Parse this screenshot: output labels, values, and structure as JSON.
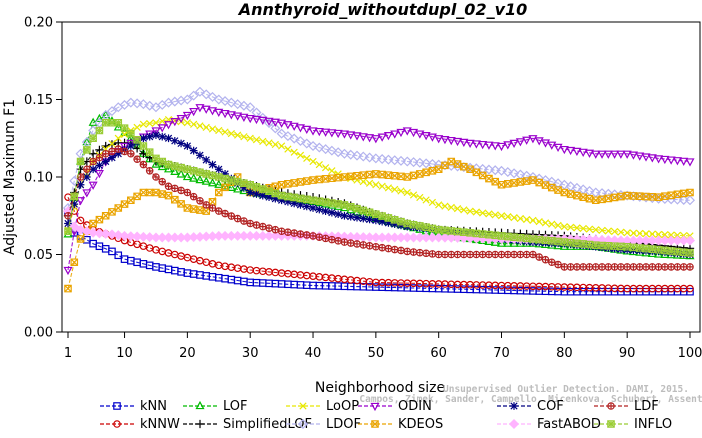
{
  "chart_data": {
    "type": "line",
    "title": "Annthyroid_withoutdupl_02_v10",
    "xlabel": "Neighborhood size",
    "ylabel": "Adjusted Maximum F1",
    "xlim": [
      1,
      100
    ],
    "ylim": [
      0,
      0.2
    ],
    "xticks": [
      "1",
      "10",
      "20",
      "30",
      "40",
      "50",
      "60",
      "70",
      "80",
      "90",
      "100"
    ],
    "yticks": [
      "0.00",
      "0.05",
      "0.10",
      "0.15",
      "0.20"
    ],
    "grid": false,
    "legend_position": "bottom",
    "watermark": [
      "Campos, Zimek, Sander, Campello, Micenkova, Schubert, Assent, Houle",
      "Unsupervised Outlier Detection. DAMI, 2015."
    ],
    "series": [
      {
        "name": "kNN",
        "color": "#0000cc",
        "marker": "square",
        "x": [
          1,
          2,
          3,
          5,
          8,
          10,
          15,
          20,
          25,
          30,
          40,
          50,
          60,
          70,
          80,
          90,
          100
        ],
        "y": [
          0.077,
          0.064,
          0.062,
          0.057,
          0.052,
          0.047,
          0.042,
          0.038,
          0.035,
          0.032,
          0.03,
          0.029,
          0.028,
          0.027,
          0.026,
          0.026,
          0.026
        ]
      },
      {
        "name": "kNNW",
        "color": "#cc0000",
        "marker": "circle",
        "x": [
          1,
          2,
          3,
          5,
          8,
          10,
          15,
          20,
          25,
          30,
          40,
          50,
          60,
          70,
          80,
          90,
          100
        ],
        "y": [
          0.087,
          0.078,
          0.072,
          0.066,
          0.062,
          0.059,
          0.053,
          0.048,
          0.043,
          0.04,
          0.036,
          0.032,
          0.031,
          0.03,
          0.029,
          0.028,
          0.028
        ]
      },
      {
        "name": "LOF",
        "color": "#00bb00",
        "marker": "triangle-up",
        "x": [
          1,
          3,
          5,
          7,
          9,
          11,
          13,
          15,
          17,
          20,
          25,
          30,
          35,
          40,
          45,
          50,
          55,
          60,
          65,
          70,
          75,
          80,
          85,
          90,
          95,
          100
        ],
        "y": [
          0.063,
          0.11,
          0.135,
          0.14,
          0.132,
          0.125,
          0.115,
          0.108,
          0.105,
          0.1,
          0.095,
          0.09,
          0.087,
          0.084,
          0.08,
          0.073,
          0.068,
          0.063,
          0.06,
          0.057,
          0.057,
          0.055,
          0.055,
          0.052,
          0.05,
          0.049
        ]
      },
      {
        "name": "SimplifiedLOF",
        "color": "#000000",
        "marker": "plus",
        "x": [
          1,
          3,
          5,
          7,
          9,
          11,
          13,
          15,
          17,
          20,
          25,
          30,
          35,
          40,
          45,
          50,
          55,
          60,
          65,
          70,
          75,
          80,
          85,
          90,
          95,
          100
        ],
        "y": [
          0.075,
          0.105,
          0.115,
          0.12,
          0.122,
          0.122,
          0.115,
          0.11,
          0.108,
          0.105,
          0.1,
          0.095,
          0.09,
          0.087,
          0.083,
          0.076,
          0.07,
          0.066,
          0.065,
          0.064,
          0.063,
          0.062,
          0.06,
          0.058,
          0.056,
          0.054
        ]
      },
      {
        "name": "LoOP",
        "color": "#e8e800",
        "marker": "cross",
        "x": [
          1,
          3,
          5,
          7,
          9,
          11,
          13,
          15,
          17,
          20,
          25,
          30,
          35,
          40,
          45,
          50,
          55,
          60,
          65,
          70,
          75,
          80,
          85,
          90,
          95,
          100
        ],
        "y": [
          0.066,
          0.095,
          0.11,
          0.118,
          0.125,
          0.13,
          0.134,
          0.135,
          0.137,
          0.135,
          0.13,
          0.125,
          0.12,
          0.11,
          0.1,
          0.095,
          0.09,
          0.082,
          0.078,
          0.075,
          0.072,
          0.068,
          0.066,
          0.064,
          0.063,
          0.062
        ]
      },
      {
        "name": "LDOF",
        "color": "#b3b3ee",
        "marker": "diamond",
        "x": [
          1,
          3,
          5,
          7,
          9,
          11,
          13,
          15,
          17,
          20,
          22,
          25,
          30,
          35,
          40,
          45,
          50,
          55,
          60,
          65,
          70,
          75,
          80,
          85,
          90,
          95,
          100
        ],
        "y": [
          0.08,
          0.115,
          0.13,
          0.14,
          0.145,
          0.148,
          0.147,
          0.145,
          0.148,
          0.15,
          0.155,
          0.15,
          0.145,
          0.128,
          0.12,
          0.115,
          0.112,
          0.11,
          0.108,
          0.106,
          0.104,
          0.1,
          0.095,
          0.09,
          0.088,
          0.086,
          0.085
        ]
      },
      {
        "name": "ODIN",
        "color": "#9900cc",
        "marker": "triangle-down",
        "x": [
          1,
          2,
          3,
          5,
          7,
          10,
          15,
          20,
          22,
          25,
          30,
          35,
          40,
          45,
          50,
          55,
          60,
          65,
          70,
          75,
          80,
          85,
          90,
          95,
          100
        ],
        "y": [
          0.04,
          0.065,
          0.085,
          0.095,
          0.11,
          0.12,
          0.13,
          0.14,
          0.145,
          0.142,
          0.138,
          0.135,
          0.13,
          0.128,
          0.125,
          0.13,
          0.125,
          0.122,
          0.12,
          0.125,
          0.118,
          0.115,
          0.115,
          0.112,
          0.11
        ]
      },
      {
        "name": "KDEOS",
        "color": "#eaa400",
        "marker": "square-x",
        "x": [
          1,
          2,
          3,
          5,
          7,
          9,
          11,
          13,
          15,
          17,
          20,
          23,
          25,
          28,
          30,
          35,
          40,
          45,
          50,
          55,
          60,
          62,
          65,
          70,
          75,
          80,
          85,
          90,
          95,
          100
        ],
        "y": [
          0.028,
          0.045,
          0.06,
          0.07,
          0.075,
          0.08,
          0.085,
          0.09,
          0.09,
          0.088,
          0.08,
          0.078,
          0.09,
          0.1,
          0.09,
          0.095,
          0.098,
          0.1,
          0.102,
          0.1,
          0.105,
          0.11,
          0.105,
          0.095,
          0.098,
          0.09,
          0.085,
          0.088,
          0.087,
          0.09
        ]
      },
      {
        "name": "COF",
        "color": "#000080",
        "marker": "asterisk",
        "x": [
          1,
          3,
          5,
          7,
          9,
          11,
          13,
          15,
          17,
          20,
          25,
          30,
          35,
          40,
          45,
          50,
          55,
          60,
          65,
          70,
          75,
          80,
          85,
          90,
          95,
          100
        ],
        "y": [
          0.07,
          0.095,
          0.105,
          0.11,
          0.115,
          0.12,
          0.125,
          0.127,
          0.125,
          0.12,
          0.105,
          0.09,
          0.085,
          0.08,
          0.075,
          0.072,
          0.068,
          0.066,
          0.063,
          0.06,
          0.058,
          0.057,
          0.055,
          0.053,
          0.052,
          0.05
        ]
      },
      {
        "name": "FastABOD",
        "color": "#ffb3ff",
        "marker": "diamond-filled",
        "x": [
          1,
          2,
          3,
          5,
          8,
          10,
          15,
          20,
          25,
          30,
          40,
          50,
          60,
          70,
          80,
          90,
          100
        ],
        "y": [
          0.078,
          0.068,
          0.066,
          0.064,
          0.063,
          0.062,
          0.061,
          0.061,
          0.062,
          0.062,
          0.062,
          0.061,
          0.061,
          0.06,
          0.06,
          0.059,
          0.059
        ]
      },
      {
        "name": "LDF",
        "color": "#b22222",
        "marker": "circle-plus",
        "x": [
          1,
          3,
          5,
          7,
          9,
          11,
          13,
          15,
          17,
          20,
          23,
          25,
          30,
          35,
          40,
          45,
          50,
          55,
          60,
          65,
          70,
          75,
          78,
          80,
          85,
          90,
          95,
          100
        ],
        "y": [
          0.075,
          0.1,
          0.11,
          0.115,
          0.118,
          0.115,
          0.108,
          0.1,
          0.094,
          0.09,
          0.082,
          0.078,
          0.07,
          0.065,
          0.062,
          0.058,
          0.055,
          0.052,
          0.05,
          0.05,
          0.05,
          0.05,
          0.045,
          0.042,
          0.042,
          0.042,
          0.042,
          0.042
        ]
      },
      {
        "name": "INFLO",
        "color": "#99cc33",
        "marker": "square-cross",
        "x": [
          1,
          3,
          5,
          7,
          9,
          11,
          13,
          15,
          17,
          20,
          25,
          30,
          35,
          40,
          45,
          50,
          55,
          60,
          65,
          70,
          75,
          80,
          85,
          90,
          95,
          100
        ],
        "y": [
          0.065,
          0.11,
          0.125,
          0.135,
          0.135,
          0.128,
          0.12,
          0.112,
          0.108,
          0.105,
          0.1,
          0.095,
          0.088,
          0.085,
          0.082,
          0.076,
          0.07,
          0.066,
          0.064,
          0.062,
          0.06,
          0.058,
          0.056,
          0.055,
          0.053,
          0.051
        ]
      }
    ]
  }
}
